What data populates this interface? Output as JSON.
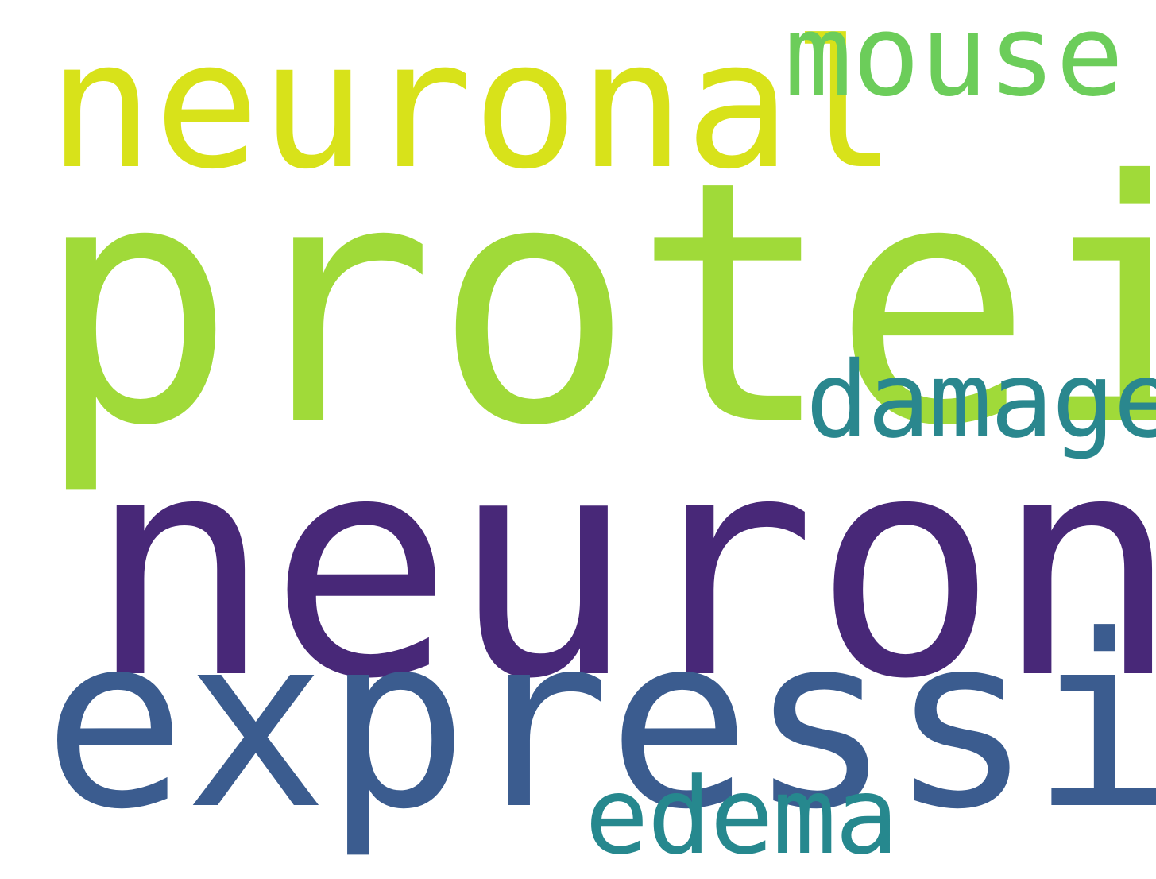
{
  "words": [
    {
      "text": "neuronal",
      "color": "#d8e21a"
    },
    {
      "text": "mouse",
      "color": "#6ccd5a"
    },
    {
      "text": "protein",
      "color": "#a0da39"
    },
    {
      "text": "damage",
      "color": "#2a878e"
    },
    {
      "text": "neuron",
      "color": "#482878"
    },
    {
      "text": "expression",
      "color": "#3b5c8f"
    },
    {
      "text": "edema",
      "color": "#26888e"
    }
  ]
}
